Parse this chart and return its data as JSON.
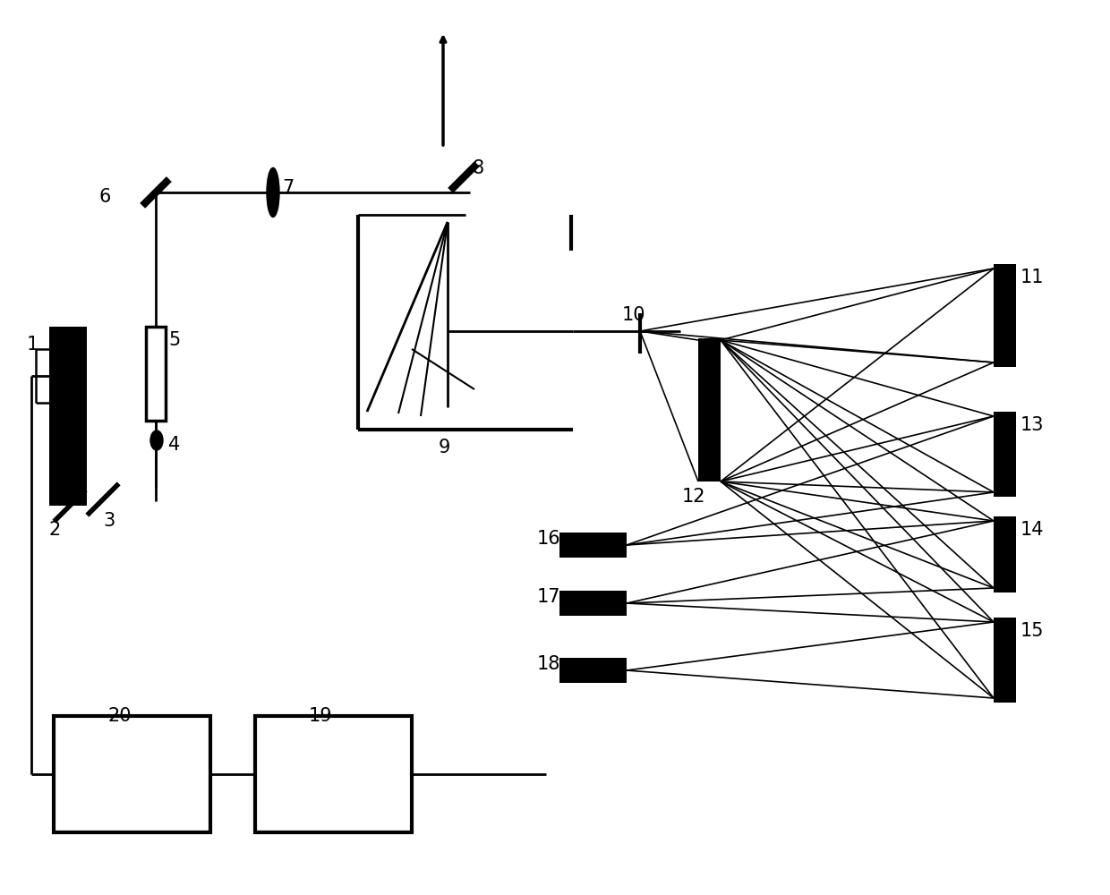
{
  "bg_color": "#ffffff",
  "lc": "#000000",
  "fs": 15,
  "figsize": [
    12.4,
    10.0
  ],
  "dpi": 100
}
